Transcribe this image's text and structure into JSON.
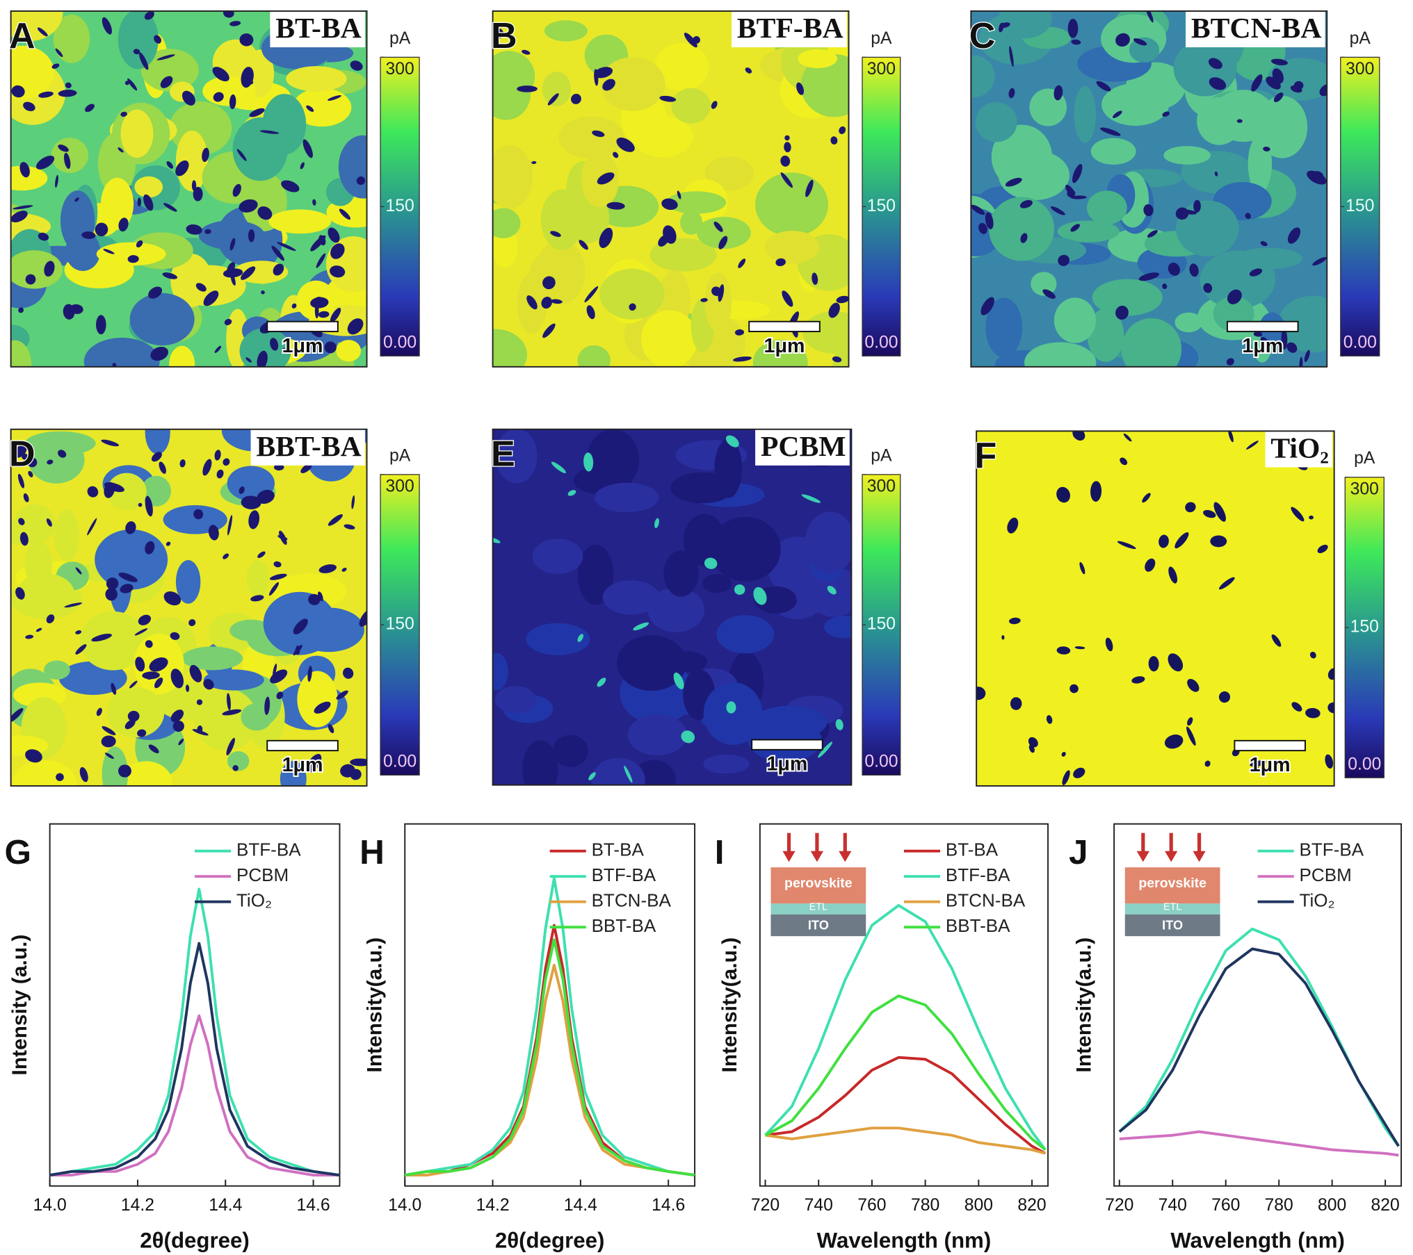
{
  "afm_panels": [
    {
      "letter": "A",
      "label": "BT-BA",
      "colorbar_unit": "pA",
      "colorbar_lim": [
        0,
        300
      ],
      "colorbar_ticks": [
        {
          "value": 0,
          "label": "0.00"
        },
        150,
        300
      ],
      "scale_bar": "1μm"
    },
    {
      "letter": "B",
      "label": "BTF-BA",
      "colorbar_unit": "pA",
      "colorbar_lim": [
        0,
        300
      ],
      "colorbar_ticks": [
        {
          "value": 0,
          "label": "0.00"
        },
        150,
        300
      ],
      "scale_bar": "1μm"
    },
    {
      "letter": "C",
      "label": "BTCN-BA",
      "colorbar_unit": "pA",
      "colorbar_lim": [
        0,
        300
      ],
      "colorbar_ticks": [
        {
          "value": 0,
          "label": "0.00"
        },
        150,
        300
      ],
      "scale_bar": "1μm"
    },
    {
      "letter": "D",
      "label": "BBT-BA",
      "colorbar_unit": "pA",
      "colorbar_lim": [
        0,
        300
      ],
      "colorbar_ticks": [
        {
          "value": 0,
          "label": "0.00"
        },
        150,
        300
      ],
      "scale_bar": "1μm"
    },
    {
      "letter": "E",
      "label": "PCBM",
      "colorbar_unit": "pA",
      "colorbar_lim": [
        0,
        300
      ],
      "colorbar_ticks": [
        {
          "value": 0,
          "label": "0.00"
        },
        150,
        300
      ],
      "scale_bar": "1μm"
    },
    {
      "letter": "F",
      "label": "TiO₂",
      "colorbar_unit": "pA",
      "colorbar_lim": [
        0,
        300
      ],
      "colorbar_ticks": [
        {
          "value": 0,
          "label": "0.00"
        },
        150,
        300
      ],
      "scale_bar": "1μm"
    }
  ],
  "chart_data": [
    {
      "type": "line",
      "panel": "G",
      "x_label": "2θ(degree)",
      "y_label": "Intensity (a.u.)",
      "x": [
        14.0,
        14.05,
        14.1,
        14.15,
        14.2,
        14.24,
        14.27,
        14.3,
        14.32,
        14.34,
        14.36,
        14.38,
        14.41,
        14.45,
        14.5,
        14.55,
        14.6,
        14.66
      ],
      "xlim": [
        14.0,
        14.66
      ],
      "ylim": [
        0,
        1
      ],
      "xticks": [
        {
          "value": 14.0,
          "label": "14.0"
        },
        {
          "value": 14.2,
          "label": "14.2"
        },
        {
          "value": 14.4,
          "label": "14.4"
        },
        {
          "value": 14.6,
          "label": "14.6"
        }
      ],
      "series": [
        {
          "name": "BTF-BA",
          "color": "#3de0b0",
          "values": [
            0.03,
            0.04,
            0.05,
            0.06,
            0.1,
            0.15,
            0.25,
            0.47,
            0.69,
            0.82,
            0.69,
            0.47,
            0.25,
            0.13,
            0.08,
            0.06,
            0.04,
            0.03
          ]
        },
        {
          "name": "PCBM",
          "color": "#d070c0",
          "values": [
            0.03,
            0.03,
            0.04,
            0.04,
            0.06,
            0.09,
            0.15,
            0.27,
            0.39,
            0.47,
            0.39,
            0.27,
            0.15,
            0.08,
            0.05,
            0.04,
            0.03,
            0.03
          ]
        },
        {
          "name": "TiO₂",
          "color": "#1f3560",
          "values": [
            0.03,
            0.04,
            0.04,
            0.05,
            0.08,
            0.13,
            0.21,
            0.38,
            0.56,
            0.67,
            0.56,
            0.38,
            0.21,
            0.11,
            0.07,
            0.05,
            0.04,
            0.03
          ]
        }
      ]
    },
    {
      "type": "line",
      "panel": "H",
      "x_label": "2θ(degree)",
      "y_label": "Intensity(a.u.)",
      "x": [
        14.0,
        14.05,
        14.1,
        14.15,
        14.2,
        14.24,
        14.27,
        14.3,
        14.32,
        14.34,
        14.36,
        14.38,
        14.41,
        14.45,
        14.5,
        14.55,
        14.6,
        14.66
      ],
      "xlim": [
        14.0,
        14.66
      ],
      "ylim": [
        0,
        1
      ],
      "xticks": [
        {
          "value": 14.0,
          "label": "14.0"
        },
        {
          "value": 14.2,
          "label": "14.2"
        },
        {
          "value": 14.4,
          "label": "14.4"
        },
        {
          "value": 14.6,
          "label": "14.6"
        }
      ],
      "series": [
        {
          "name": "BT-BA",
          "color": "#c82828",
          "values": [
            0.03,
            0.04,
            0.04,
            0.06,
            0.09,
            0.14,
            0.22,
            0.41,
            0.6,
            0.72,
            0.6,
            0.41,
            0.22,
            0.12,
            0.07,
            0.05,
            0.04,
            0.03
          ]
        },
        {
          "name": "BTF-BA",
          "color": "#3de0b0",
          "values": [
            0.03,
            0.04,
            0.05,
            0.06,
            0.1,
            0.16,
            0.26,
            0.49,
            0.71,
            0.85,
            0.71,
            0.49,
            0.26,
            0.14,
            0.08,
            0.06,
            0.04,
            0.03
          ]
        },
        {
          "name": "BTCN-BA",
          "color": "#e0a040",
          "values": [
            0.03,
            0.03,
            0.04,
            0.05,
            0.08,
            0.12,
            0.19,
            0.35,
            0.51,
            0.61,
            0.51,
            0.35,
            0.19,
            0.1,
            0.06,
            0.05,
            0.04,
            0.03
          ]
        },
        {
          "name": "BBT-BA",
          "color": "#40e040",
          "values": [
            0.03,
            0.04,
            0.04,
            0.05,
            0.08,
            0.13,
            0.21,
            0.39,
            0.57,
            0.68,
            0.57,
            0.39,
            0.21,
            0.11,
            0.07,
            0.05,
            0.04,
            0.03
          ]
        }
      ]
    },
    {
      "type": "line",
      "panel": "I",
      "x_label": "Wavelength (nm)",
      "y_label": "Intensity(a.u.)",
      "inset_layers": [
        "perovskite",
        "ETL",
        "ITO"
      ],
      "x": [
        720,
        730,
        740,
        750,
        760,
        770,
        780,
        790,
        800,
        810,
        820,
        825
      ],
      "xlim": [
        718,
        826
      ],
      "ylim": [
        0,
        1
      ],
      "xticks": [
        720,
        740,
        760,
        780,
        800,
        820
      ],
      "series": [
        {
          "name": "BT-BA",
          "color": "#c82828",
          "values": [
            0.14,
            0.15,
            0.19,
            0.25,
            0.32,
            0.355,
            0.35,
            0.31,
            0.24,
            0.17,
            0.11,
            0.09
          ]
        },
        {
          "name": "BTF-BA",
          "color": "#3de0b0",
          "values": [
            0.14,
            0.22,
            0.38,
            0.57,
            0.72,
            0.775,
            0.73,
            0.6,
            0.43,
            0.27,
            0.15,
            0.1
          ]
        },
        {
          "name": "BTCN-BA",
          "color": "#e0a040",
          "values": [
            0.14,
            0.13,
            0.14,
            0.15,
            0.16,
            0.16,
            0.15,
            0.14,
            0.12,
            0.11,
            0.1,
            0.09
          ]
        },
        {
          "name": "BBT-BA",
          "color": "#40e040",
          "values": [
            0.14,
            0.18,
            0.27,
            0.38,
            0.48,
            0.525,
            0.5,
            0.42,
            0.31,
            0.21,
            0.13,
            0.1
          ]
        }
      ]
    },
    {
      "type": "line",
      "panel": "J",
      "x_label": "Wavelength (nm)",
      "y_label": "Intensity(a.u.)",
      "inset_layers": [
        "perovskite",
        "ETL",
        "ITO"
      ],
      "x": [
        720,
        730,
        740,
        750,
        760,
        770,
        780,
        790,
        800,
        810,
        820,
        825
      ],
      "xlim": [
        718,
        826
      ],
      "ylim": [
        0,
        1
      ],
      "xticks": [
        720,
        740,
        760,
        780,
        800,
        820
      ],
      "series": [
        {
          "name": "BTF-BA",
          "color": "#3de0b0",
          "values": [
            0.15,
            0.22,
            0.35,
            0.51,
            0.65,
            0.71,
            0.68,
            0.58,
            0.44,
            0.29,
            0.16,
            0.11
          ]
        },
        {
          "name": "PCBM",
          "color": "#d070c0",
          "values": [
            0.13,
            0.135,
            0.14,
            0.15,
            0.14,
            0.13,
            0.12,
            0.11,
            0.1,
            0.095,
            0.09,
            0.085
          ]
        },
        {
          "name": "TiO₂",
          "color": "#1f3560",
          "values": [
            0.15,
            0.21,
            0.32,
            0.47,
            0.6,
            0.655,
            0.64,
            0.56,
            0.43,
            0.29,
            0.17,
            0.11
          ]
        }
      ]
    }
  ]
}
